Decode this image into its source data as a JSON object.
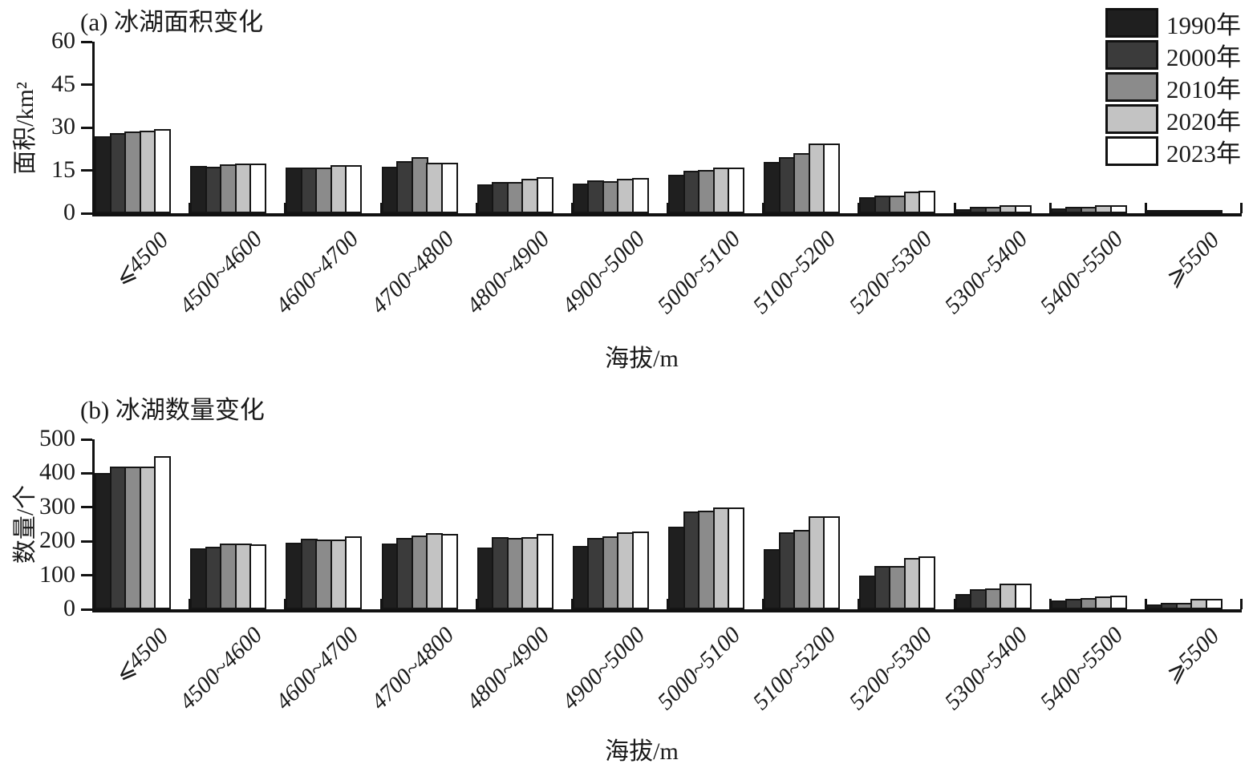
{
  "figure": {
    "background": "#ffffff",
    "text_color": "#1a1a1a",
    "axis_color": "#111111"
  },
  "legend": {
    "position": "top-right",
    "entries": [
      {
        "label": "1990年",
        "color": "#1f1f1f"
      },
      {
        "label": "2000年",
        "color": "#3b3b3b"
      },
      {
        "label": "2010年",
        "color": "#8b8b8b"
      },
      {
        "label": "2020年",
        "color": "#c3c3c3"
      },
      {
        "label": "2023年",
        "color": "#ffffff"
      }
    ]
  },
  "chart_data": [
    {
      "id": "glacial-lake-area",
      "type": "bar",
      "title": "(a) 冰湖面积变化",
      "ylabel": "面积/km²",
      "xlabel": "海拔/m",
      "ylim": [
        0,
        60
      ],
      "yticks": [
        0,
        15,
        30,
        45,
        60
      ],
      "grid": false,
      "legend_position": "top-right",
      "categories": [
        "⩽4500",
        "4500~4600",
        "4600~4700",
        "4700~4800",
        "4800~4900",
        "4900~5000",
        "5000~5100",
        "5100~5200",
        "5200~5300",
        "5300~5400",
        "5400~5500",
        "⩾5500"
      ],
      "series": [
        {
          "name": "1990年",
          "color": "#1f1f1f",
          "values": [
            27.0,
            16.5,
            16.0,
            16.3,
            10.0,
            10.5,
            13.5,
            18.0,
            5.5,
            1.5,
            1.8,
            0.3
          ]
        },
        {
          "name": "2000年",
          "color": "#3b3b3b",
          "values": [
            28.0,
            16.3,
            16.0,
            18.3,
            11.0,
            11.5,
            14.8,
            19.5,
            6.3,
            2.2,
            2.3,
            0.5
          ]
        },
        {
          "name": "2010年",
          "color": "#8b8b8b",
          "values": [
            28.5,
            17.0,
            16.0,
            19.5,
            11.0,
            11.3,
            15.2,
            21.0,
            6.3,
            2.2,
            2.3,
            0.5
          ]
        },
        {
          "name": "2020年",
          "color": "#c3c3c3",
          "values": [
            28.8,
            17.3,
            16.8,
            17.8,
            12.0,
            12.0,
            16.0,
            24.3,
            7.5,
            2.8,
            2.8,
            0.8
          ]
        },
        {
          "name": "2023年",
          "color": "#ffffff",
          "values": [
            29.3,
            17.3,
            16.8,
            17.8,
            12.5,
            12.3,
            16.0,
            24.5,
            7.8,
            2.8,
            2.8,
            0.8
          ]
        }
      ]
    },
    {
      "id": "glacial-lake-count",
      "type": "bar",
      "title": "(b) 冰湖数量变化",
      "ylabel": "数量/个",
      "xlabel": "海拔/m",
      "ylim": [
        0,
        500
      ],
      "yticks": [
        0,
        100,
        200,
        300,
        400,
        500
      ],
      "grid": false,
      "legend_position": "none",
      "categories": [
        "⩽4500",
        "4500~4600",
        "4600~4700",
        "4700~4800",
        "4800~4900",
        "4900~5000",
        "5000~5100",
        "5100~5200",
        "5200~5300",
        "5300~5400",
        "5400~5500",
        "⩾5500"
      ],
      "series": [
        {
          "name": "1990年",
          "color": "#1f1f1f",
          "values": [
            400,
            180,
            196,
            193,
            181,
            186,
            242,
            176,
            98,
            45,
            25,
            15
          ]
        },
        {
          "name": "2000年",
          "color": "#3b3b3b",
          "values": [
            420,
            184,
            208,
            210,
            213,
            211,
            288,
            226,
            128,
            58,
            30,
            20
          ]
        },
        {
          "name": "2010年",
          "color": "#8b8b8b",
          "values": [
            420,
            193,
            206,
            216,
            210,
            215,
            290,
            233,
            127,
            62,
            32,
            20
          ]
        },
        {
          "name": "2020年",
          "color": "#c3c3c3",
          "values": [
            420,
            193,
            206,
            224,
            213,
            227,
            300,
            274,
            152,
            75,
            38,
            30
          ]
        },
        {
          "name": "2023年",
          "color": "#ffffff",
          "values": [
            450,
            191,
            215,
            222,
            221,
            228,
            300,
            274,
            155,
            75,
            40,
            30
          ]
        }
      ]
    }
  ]
}
